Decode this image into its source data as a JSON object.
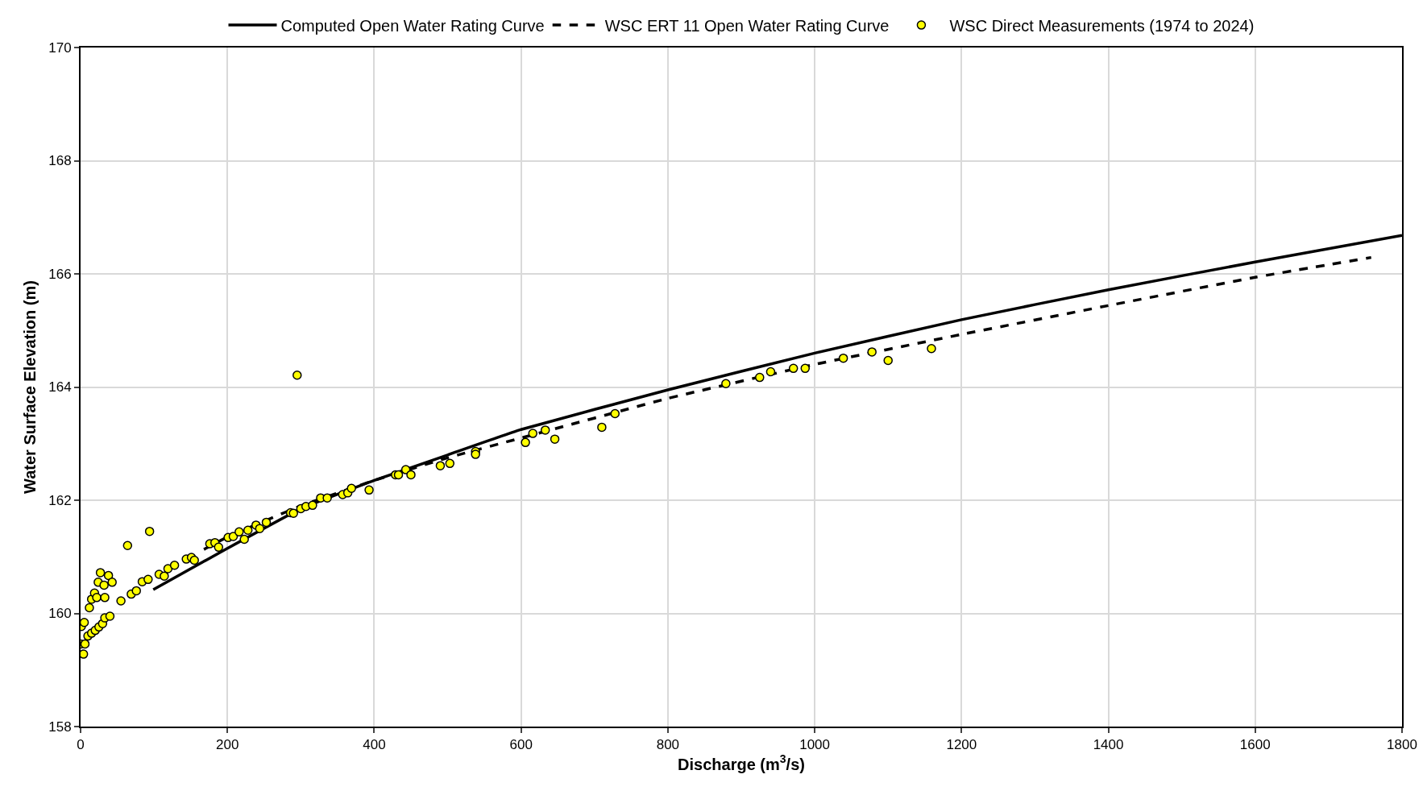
{
  "chart_data": {
    "type": "line",
    "xlabel": "Discharge (m$^{3}$/s)",
    "ylabel": "Water Surface Elevation (m)",
    "xlim": [
      0,
      1800
    ],
    "ylim": [
      158,
      170
    ],
    "xticks": [
      0,
      200,
      400,
      600,
      800,
      1000,
      1200,
      1400,
      1600,
      1800
    ],
    "yticks": [
      158,
      160,
      162,
      164,
      166,
      168,
      170
    ],
    "grid": true,
    "legend": "top",
    "series": [
      {
        "name": "Computed Open Water Rating Curve",
        "color": "#000000",
        "line_style": "solid",
        "marker": "none",
        "x": [
          99,
          200,
          300,
          400,
          500,
          600,
          800,
          1000,
          1200,
          1400,
          1600,
          1800
        ],
        "values": [
          160.42,
          161.15,
          161.85,
          162.35,
          162.8,
          163.25,
          163.95,
          164.6,
          165.19,
          165.72,
          166.21,
          166.68
        ]
      },
      {
        "name": "WSC ERT 11 Open Water Rating Curve",
        "color": "#000000",
        "line_style": "dashed",
        "marker": "none",
        "x": [
          168,
          200,
          300,
          400,
          500,
          600,
          800,
          1000,
          1200,
          1400,
          1600,
          1758
        ],
        "values": [
          161.13,
          161.35,
          161.9,
          162.35,
          162.75,
          163.1,
          163.8,
          164.4,
          164.93,
          165.44,
          165.94,
          166.29
        ]
      },
      {
        "name": "WSC Direct Measurements (1974 to 2024)",
        "color": "#ffff00",
        "type": "scatter",
        "marker": "circle",
        "x": [
          295,
          64,
          94,
          0,
          4,
          6,
          1,
          5,
          12,
          15,
          19,
          24,
          27,
          32,
          38,
          43,
          22,
          33,
          10,
          15,
          20,
          25,
          30,
          33,
          40,
          55,
          69,
          76,
          84,
          92,
          107,
          114,
          119,
          128,
          144,
          151,
          155,
          176,
          183,
          188,
          201,
          208,
          216,
          223,
          228,
          239,
          244,
          253,
          286,
          290,
          300,
          307,
          316,
          327,
          336,
          357,
          364,
          369,
          393,
          429,
          433,
          443,
          450,
          490,
          503,
          538,
          538,
          606,
          616,
          633,
          646,
          710,
          728,
          879,
          925,
          940,
          971,
          987,
          1039,
          1078,
          1100,
          1159
        ],
        "values": [
          164.21,
          161.2,
          161.45,
          159.46,
          159.28,
          159.46,
          159.77,
          159.84,
          160.1,
          160.25,
          160.36,
          160.55,
          160.72,
          160.5,
          160.67,
          160.55,
          160.28,
          160.28,
          159.6,
          159.65,
          159.7,
          159.76,
          159.82,
          159.92,
          159.95,
          160.22,
          160.34,
          160.4,
          160.56,
          160.6,
          160.69,
          160.66,
          160.79,
          160.85,
          160.96,
          160.99,
          160.94,
          161.23,
          161.25,
          161.17,
          161.34,
          161.36,
          161.44,
          161.31,
          161.47,
          161.56,
          161.5,
          161.61,
          161.78,
          161.77,
          161.85,
          161.89,
          161.91,
          162.04,
          162.04,
          162.1,
          162.13,
          162.21,
          162.18,
          162.45,
          162.45,
          162.54,
          162.45,
          162.61,
          162.65,
          162.86,
          162.81,
          163.02,
          163.18,
          163.24,
          163.08,
          163.29,
          163.53,
          164.06,
          164.17,
          164.27,
          164.33,
          164.33,
          164.51,
          164.62,
          164.47,
          164.68
        ]
      }
    ]
  }
}
